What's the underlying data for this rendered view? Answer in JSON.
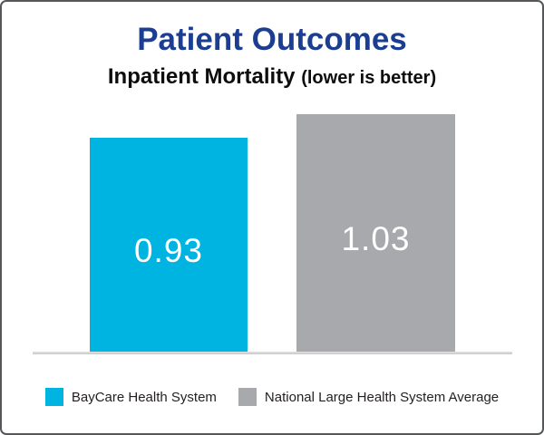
{
  "frame": {
    "background": "#ffffff",
    "border_color": "#55565a"
  },
  "header": {
    "title": "Patient Outcomes",
    "title_color": "#1b3e92",
    "subtitle": "Inpatient Mortality",
    "subtitle_note": "(lower is better)"
  },
  "chart_data": {
    "type": "bar",
    "title": "Patient Outcomes",
    "subtitle": "Inpatient Mortality (lower is better)",
    "categories": [
      "BayCare Health System",
      "National Large Health System Average"
    ],
    "values": [
      0.93,
      1.03
    ],
    "value_labels": [
      "0.93",
      "1.03"
    ],
    "bar_colors": [
      "#00b4e1",
      "#a7a9ac"
    ],
    "value_label_color": "#ffffff",
    "baseline_color": "#d9d9d9",
    "xlabel": "",
    "ylabel": "",
    "ylim": [
      0,
      1.03
    ],
    "grid": false,
    "legend_position": "bottom",
    "legend": [
      {
        "label": "BayCare Health System",
        "color": "#00b4e1"
      },
      {
        "label": "National Large Health System Average",
        "color": "#a7a9ac"
      }
    ]
  }
}
